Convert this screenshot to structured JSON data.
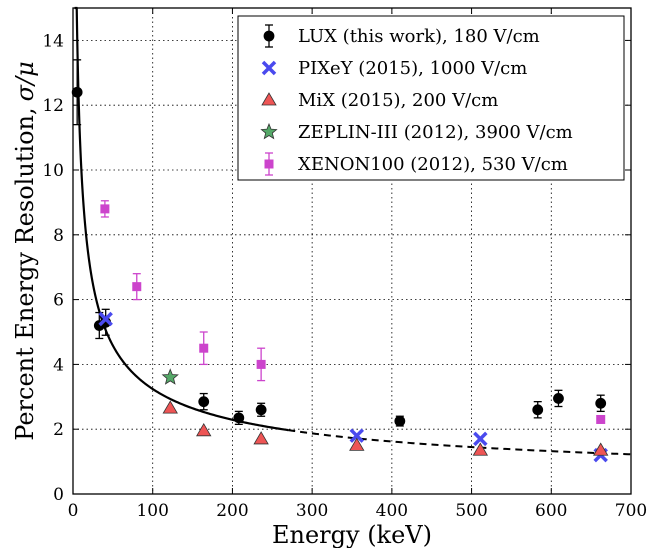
{
  "chart_data": {
    "type": "scatter",
    "xlabel": "Energy (keV)",
    "ylabel": "Percent Energy Resolution,",
    "ylabel_symbol": "σ/μ",
    "xlim": [
      0,
      700
    ],
    "ylim": [
      0,
      15
    ],
    "x_ticks": [
      "0",
      "100",
      "200",
      "300",
      "400",
      "500",
      "600",
      "700"
    ],
    "y_ticks": [
      "0",
      "2",
      "4",
      "6",
      "8",
      "10",
      "12",
      "14"
    ],
    "grid": true,
    "legend_position": "top-right",
    "series": [
      {
        "name": "LUX (this work), 180 V/cm",
        "marker": "circle",
        "color": "#000000",
        "points": [
          {
            "x": 5.2,
            "y": 12.4,
            "err": 1.0
          },
          {
            "x": 33,
            "y": 5.2,
            "err": 0.4
          },
          {
            "x": 41,
            "y": 5.3,
            "err": 0.4
          },
          {
            "x": 164,
            "y": 2.85,
            "err": 0.25
          },
          {
            "x": 208,
            "y": 2.35,
            "err": 0.2
          },
          {
            "x": 236,
            "y": 2.6,
            "err": 0.2
          },
          {
            "x": 410,
            "y": 2.25,
            "err": 0.15
          },
          {
            "x": 583,
            "y": 2.6,
            "err": 0.25
          },
          {
            "x": 609,
            "y": 2.95,
            "err": 0.25
          },
          {
            "x": 662,
            "y": 2.8,
            "err": 0.25
          }
        ]
      },
      {
        "name": "PIXeY (2015), 1000 V/cm",
        "marker": "x",
        "color": "#4a4aee",
        "points": [
          {
            "x": 41,
            "y": 5.4
          },
          {
            "x": 356,
            "y": 1.8
          },
          {
            "x": 511,
            "y": 1.7
          },
          {
            "x": 662,
            "y": 1.2
          }
        ]
      },
      {
        "name": "MiX (2015), 200 V/cm",
        "marker": "triangle",
        "color": "#ee5555",
        "points": [
          {
            "x": 122,
            "y": 2.65
          },
          {
            "x": 164,
            "y": 1.95
          },
          {
            "x": 236,
            "y": 1.7
          },
          {
            "x": 356,
            "y": 1.5
          },
          {
            "x": 511,
            "y": 1.35
          },
          {
            "x": 662,
            "y": 1.35
          }
        ]
      },
      {
        "name": "ZEPLIN-III (2012), 3900 V/cm",
        "marker": "star",
        "color": "#55a868",
        "points": [
          {
            "x": 122,
            "y": 3.6
          }
        ]
      },
      {
        "name": "XENON100 (2012), 530 V/cm",
        "marker": "square",
        "color": "#cc44cc",
        "points": [
          {
            "x": 40,
            "y": 8.8,
            "err": 0.25
          },
          {
            "x": 80,
            "y": 6.4,
            "err": 0.4
          },
          {
            "x": 164,
            "y": 4.5,
            "err": 0.5
          },
          {
            "x": 236,
            "y": 4.0,
            "err": 0.5
          },
          {
            "x": 662,
            "y": 2.3,
            "err": 0.1
          }
        ]
      }
    ],
    "fit_curve": {
      "formula": "a/sqrt(E)",
      "a": 32.4,
      "solid_range": [
        2,
        270
      ],
      "dashed_range": [
        270,
        700
      ]
    }
  }
}
